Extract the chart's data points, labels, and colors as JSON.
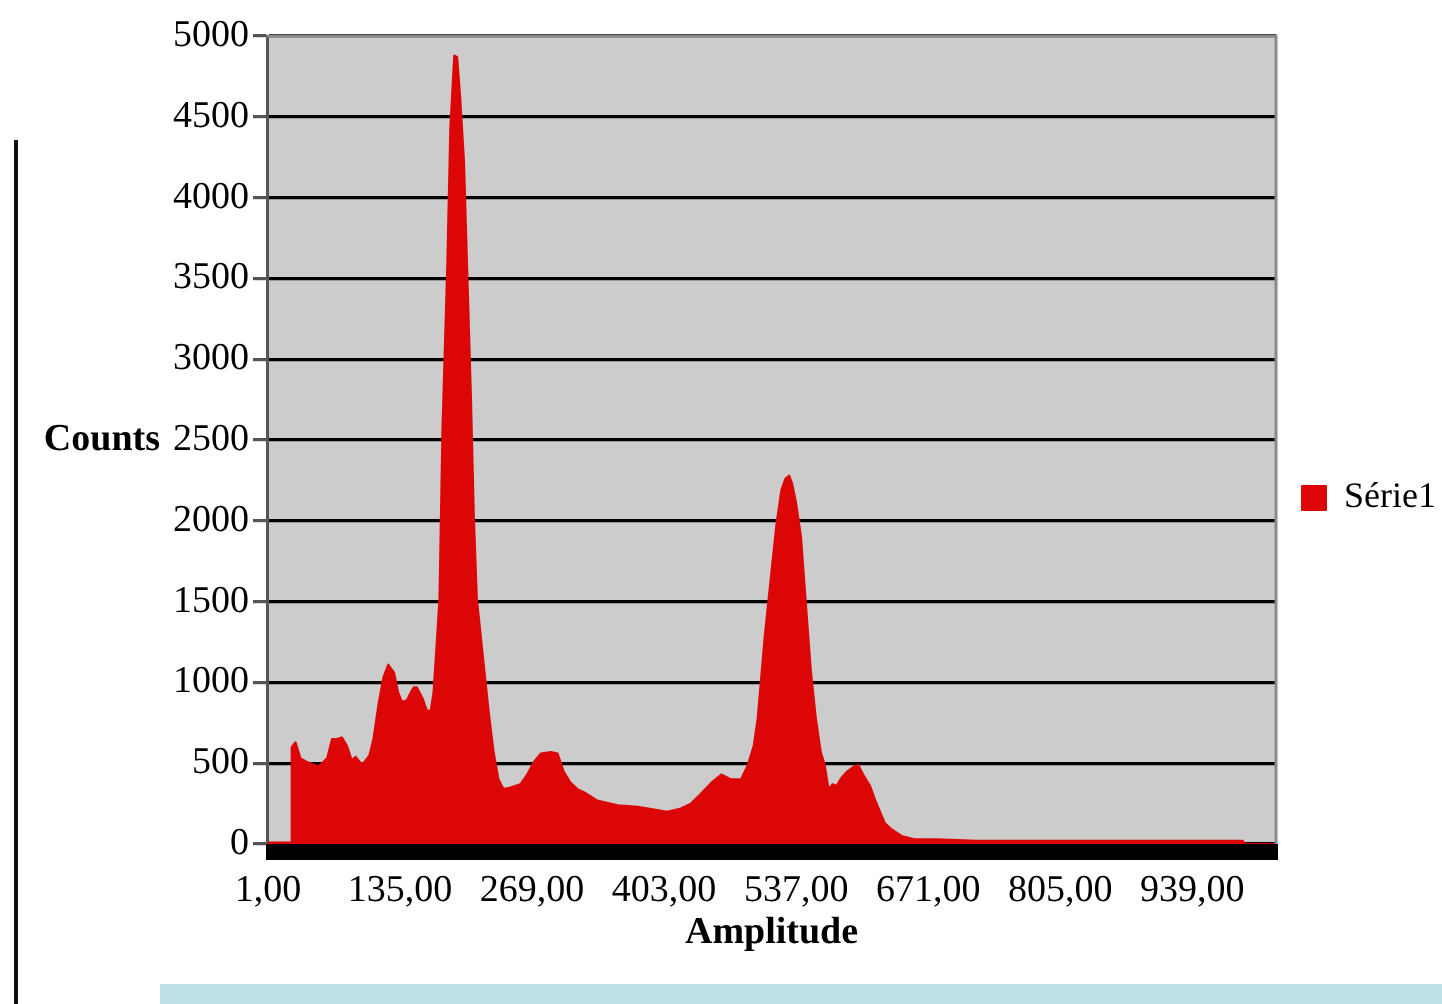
{
  "chart_data": {
    "type": "area",
    "xlabel": "Amplitude",
    "ylabel": "Counts",
    "x": [
      1,
      24,
      25,
      29,
      34,
      40,
      51,
      54,
      61,
      66,
      71,
      76,
      81,
      86,
      90,
      95,
      98,
      104,
      108,
      113,
      118,
      123,
      129,
      133,
      137,
      142,
      146,
      149,
      152,
      158,
      162,
      166,
      169,
      173,
      175,
      178,
      183,
      186,
      190,
      193,
      196,
      200,
      203,
      207,
      210,
      213,
      220,
      225,
      230,
      235,
      240,
      247,
      257,
      264,
      271,
      278,
      288,
      295,
      301,
      308,
      315,
      322,
      335,
      356,
      376,
      396,
      406,
      420,
      430,
      440,
      451,
      461,
      471,
      481,
      488,
      494,
      498,
      505,
      512,
      517,
      522,
      526,
      530,
      533,
      537,
      542,
      547,
      552,
      557,
      562,
      566,
      570,
      574,
      578,
      583,
      589,
      596,
      600,
      605,
      612,
      618,
      627,
      634,
      644,
      657,
      680,
      720,
      780,
      850,
      920,
      990,
      993,
      1024
    ],
    "series": [
      {
        "name": "Série1",
        "color": "#dc0606",
        "values": [
          10,
          10,
          600,
          630,
          530,
          510,
          480,
          490,
          530,
          650,
          650,
          660,
          610,
          520,
          540,
          500,
          500,
          550,
          650,
          860,
          1030,
          1110,
          1060,
          940,
          880,
          890,
          940,
          970,
          970,
          900,
          830,
          820,
          940,
          1320,
          1520,
          2560,
          3600,
          4430,
          4880,
          4870,
          4630,
          4220,
          3600,
          2770,
          2020,
          1520,
          1110,
          820,
          570,
          400,
          340,
          350,
          370,
          430,
          510,
          560,
          570,
          560,
          450,
          380,
          340,
          320,
          270,
          240,
          230,
          210,
          200,
          220,
          250,
          310,
          380,
          430,
          400,
          400,
          490,
          610,
          780,
          1280,
          1690,
          1980,
          2190,
          2260,
          2280,
          2230,
          2110,
          1900,
          1480,
          1070,
          780,
          570,
          490,
          340,
          370,
          360,
          410,
          450,
          480,
          490,
          430,
          360,
          260,
          130,
          90,
          50,
          30,
          30,
          20,
          20,
          20,
          20,
          20,
          0,
          0
        ]
      }
    ],
    "xlim": [
      0,
      1024
    ],
    "xticks": [
      {
        "value": 1,
        "label": "1,00"
      },
      {
        "value": 135,
        "label": "135,00"
      },
      {
        "value": 269,
        "label": "269,00"
      },
      {
        "value": 403,
        "label": "403,00"
      },
      {
        "value": 537,
        "label": "537,00"
      },
      {
        "value": 671,
        "label": "671,00"
      },
      {
        "value": 805,
        "label": "805,00"
      },
      {
        "value": 939,
        "label": "939,00"
      }
    ],
    "ylim": [
      0,
      5000
    ],
    "yticks": [
      0,
      500,
      1000,
      1500,
      2000,
      2500,
      3000,
      3500,
      4000,
      4500,
      5000
    ],
    "grid": "y",
    "legend": "right"
  }
}
